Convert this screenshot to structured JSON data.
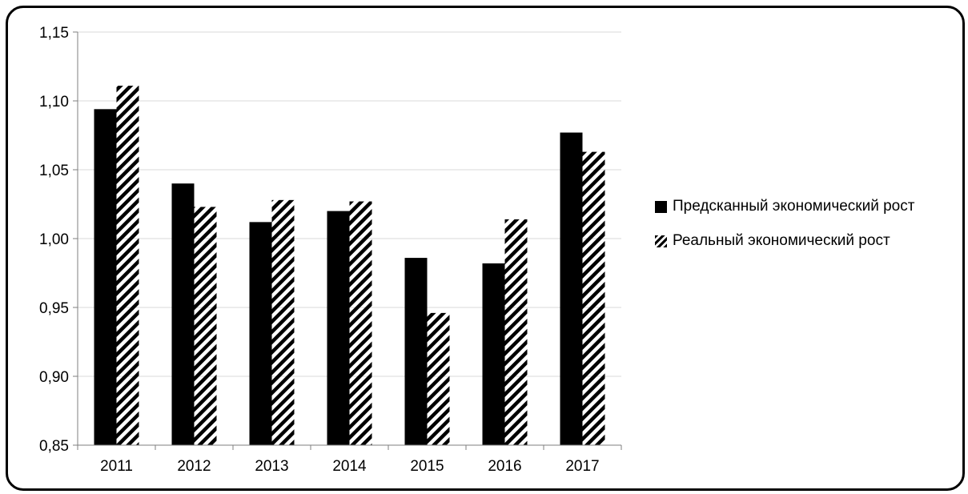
{
  "chart_data": {
    "type": "bar",
    "categories": [
      "2011",
      "2012",
      "2013",
      "2014",
      "2015",
      "2016",
      "2017"
    ],
    "series": [
      {
        "name": "Предсканный экономический рост",
        "values": [
          1.094,
          1.04,
          1.012,
          1.02,
          0.986,
          0.982,
          1.077
        ],
        "fill": "solid"
      },
      {
        "name": "Реальный экономический рост",
        "values": [
          1.111,
          1.023,
          1.028,
          1.027,
          0.946,
          1.014,
          1.063
        ],
        "fill": "hatched"
      }
    ],
    "yticks": [
      "0,85",
      "0,90",
      "0,95",
      "1,00",
      "1,05",
      "1,10",
      "1,15"
    ],
    "ylim": [
      0.85,
      1.15
    ],
    "title": "",
    "xlabel": "",
    "ylabel": "",
    "grid": true,
    "legend_position": "right",
    "colors": {
      "series_1": "#000000",
      "series_2": "#000000",
      "grid": "#d9d9d9",
      "axis": "#7f7f7f"
    }
  },
  "legend": {
    "items": [
      {
        "label": "Предсканный экономический рост"
      },
      {
        "label": "Реальный экономический рост"
      }
    ]
  }
}
